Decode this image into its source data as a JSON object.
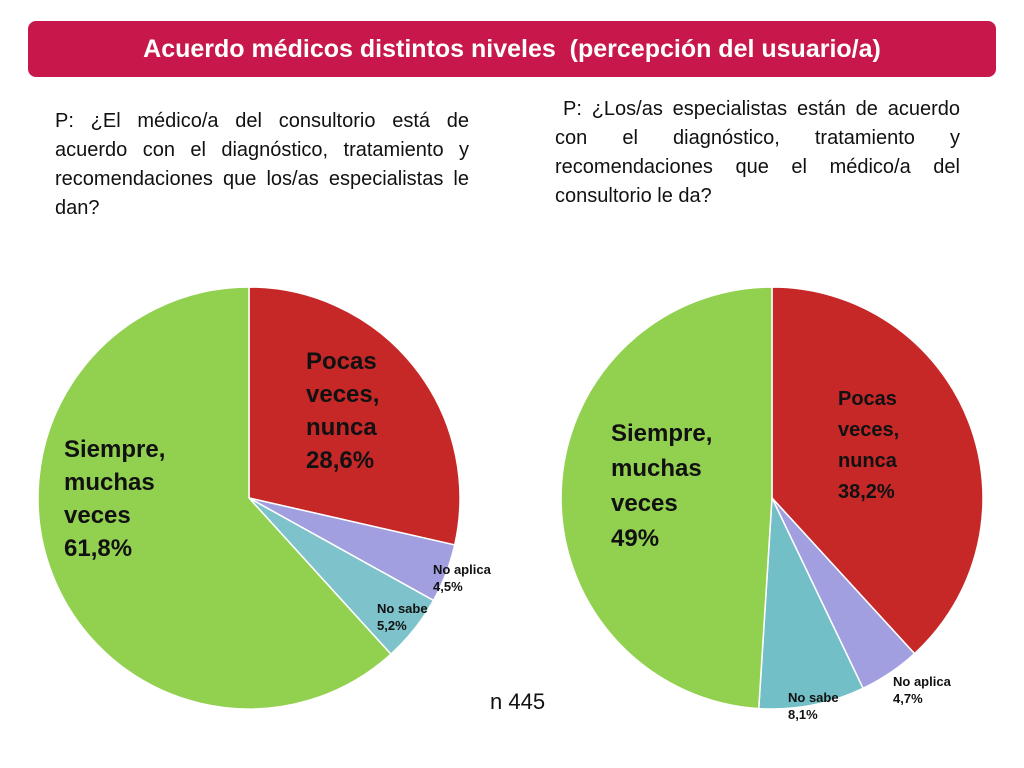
{
  "header": {
    "title": "Acuerdo médicos distintos niveles  (percepción del usuario/a)",
    "color": "#c8174a"
  },
  "questions": {
    "left": "P: ¿El médico/a del consultorio está de acuerdo con el diagnóstico, tratamiento y recomendaciones que los/as especialistas le dan?",
    "right": "P: ¿Los/as especialistas están de acuerdo con el diagnóstico, tratamiento y recomendaciones que el médico/a del consultorio le da?"
  },
  "sample": "n 445",
  "chart_data": [
    {
      "type": "pie",
      "slices": [
        {
          "label_lines": [
            "Pocas",
            "veces,",
            "nunca",
            "28,6%"
          ],
          "value": 28.6,
          "color": "#c62828"
        },
        {
          "label_lines": [
            "No aplica",
            "4,5%"
          ],
          "value": 4.5,
          "color": "#a29fe0"
        },
        {
          "label_lines": [
            "No sabe",
            "5,2%"
          ],
          "value": 5.2,
          "color": "#7ec3cc"
        },
        {
          "label_lines": [
            "Siempre,",
            "muchas",
            "veces",
            "61,8%"
          ],
          "value": 61.8,
          "color": "#92d050"
        }
      ]
    },
    {
      "type": "pie",
      "slices": [
        {
          "label_lines": [
            "Pocas",
            "veces,",
            "nunca",
            "38,2%"
          ],
          "value": 38.2,
          "color": "#c62828"
        },
        {
          "label_lines": [
            "No aplica",
            "4,7%"
          ],
          "value": 4.7,
          "color": "#a29fe0"
        },
        {
          "label_lines": [
            "No sabe",
            "8,1%"
          ],
          "value": 8.1,
          "color": "#73bfc7"
        },
        {
          "label_lines": [
            "Siempre,",
            "muchas",
            "veces",
            "49%"
          ],
          "value": 49,
          "color": "#92d050"
        }
      ]
    }
  ]
}
